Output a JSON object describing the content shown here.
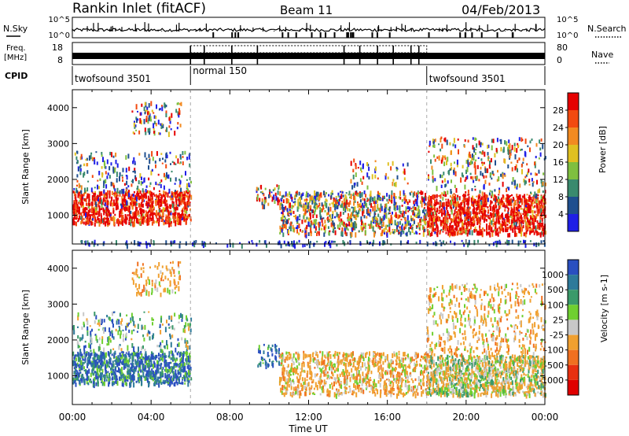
{
  "header": {
    "title": "Rankin Inlet (fitACF)",
    "beam": "Beam 11",
    "date": "04/Feb/2013"
  },
  "noise_panel": {
    "left_label": "N.Sky",
    "right_label": "N.Search",
    "left_ticks": [
      "10^5",
      "10^0"
    ],
    "right_ticks": [
      "10^5",
      "10^0"
    ]
  },
  "freq_panel": {
    "left_label_line1": "Freq.",
    "left_label_line2": "[MHz]",
    "right_label": "Nave",
    "left_ticks": [
      "18",
      "8"
    ],
    "right_ticks": [
      "80",
      "0"
    ]
  },
  "cpid": {
    "label": "CPID",
    "segments": [
      {
        "name": "twofsound 3501",
        "start": 0,
        "end": 6
      },
      {
        "name": "normal 150",
        "start": 6,
        "end": 18
      },
      {
        "name": "twofsound 3501",
        "start": 18,
        "end": 24
      }
    ]
  },
  "chart_data": [
    {
      "type": "heatmap",
      "name": "power",
      "ylabel": "Slant Range [km]",
      "xlim": [
        0,
        24
      ],
      "ylim": [
        200,
        4500
      ],
      "yticks": [
        "1000",
        "2000",
        "3000",
        "4000"
      ],
      "colorbar_label": "Power [dB]",
      "colorbar_ticks": [
        "4",
        "8",
        "12",
        "16",
        "20",
        "24",
        "28"
      ],
      "colors": [
        "#1f1fe6",
        "#1f4f8f",
        "#3a8a6e",
        "#7fbf3f",
        "#e0c020",
        "#f28a20",
        "#f24a10",
        "#e60000"
      ]
    },
    {
      "type": "heatmap",
      "name": "velocity",
      "ylabel": "Slant Range [km]",
      "xlabel": "Time UT",
      "xlim": [
        0,
        24
      ],
      "ylim": [
        200,
        4500
      ],
      "yticks": [
        "1000",
        "2000",
        "3000",
        "4000"
      ],
      "xticks": [
        "00:00",
        "04:00",
        "08:00",
        "12:00",
        "16:00",
        "20:00",
        "00:00"
      ],
      "colorbar_label": "Velocity [m s-1]",
      "colorbar_ticks": [
        "1000",
        "500",
        "100",
        "25",
        "-25",
        "-100",
        "-500",
        "-1000"
      ],
      "colors": [
        "#2a4fc0",
        "#2e7a9a",
        "#3a9a6a",
        "#6fcf30",
        "#c8c8c8",
        "#f0a030",
        "#f07020",
        "#e83010",
        "#e00000"
      ]
    }
  ]
}
